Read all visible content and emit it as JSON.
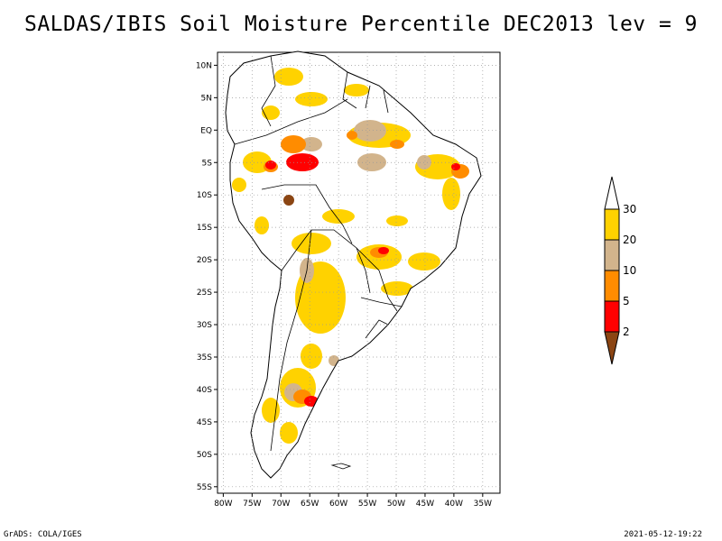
{
  "title": "SALDAS/IBIS Soil Moisture Percentile DEC2013 lev = 9",
  "map": {
    "region": "South America",
    "lat_labels": [
      "10N",
      "5N",
      "EQ",
      "5S",
      "10S",
      "15S",
      "20S",
      "25S",
      "30S",
      "35S",
      "40S",
      "45S",
      "50S",
      "55S"
    ],
    "lat_values": [
      10,
      5,
      0,
      -5,
      -10,
      -15,
      -20,
      -25,
      -30,
      -35,
      -40,
      -45,
      -50,
      -55
    ],
    "lon_labels": [
      "80W",
      "75W",
      "70W",
      "65W",
      "60W",
      "55W",
      "50W",
      "45W",
      "40W",
      "35W"
    ],
    "lon_values": [
      -80,
      -75,
      -70,
      -65,
      -60,
      -55,
      -50,
      -45,
      -40,
      -35
    ],
    "extent": {
      "lon": [
        -81,
        -32
      ],
      "lat": [
        -56,
        12
      ]
    },
    "gridlines": "dotted",
    "land_color": "#ffffff",
    "border_color": "#000000"
  },
  "legend": {
    "placement": "right",
    "labels": [
      "30",
      "20",
      "10",
      "5",
      "2"
    ],
    "bins": [
      {
        "range": ">30",
        "color": "#ffffff"
      },
      {
        "range": "20-30",
        "color": "#ffd200"
      },
      {
        "range": "10-20",
        "color": "#d2b48c"
      },
      {
        "range": "5-10",
        "color": "#ff8c00"
      },
      {
        "range": "2-5",
        "color": "#ff0000"
      },
      {
        "range": "<2",
        "color": "#8b4513"
      }
    ]
  },
  "footer": {
    "left": "GrADS: COLA/IGES",
    "right": "2021-05-12-19:22"
  }
}
